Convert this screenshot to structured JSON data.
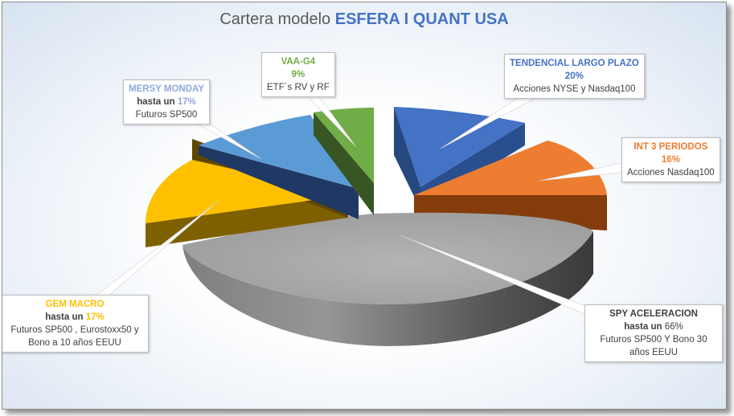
{
  "title": {
    "prefix": "Cartera modelo",
    "highlight": "ESFERA I QUANT USA"
  },
  "chart_data": {
    "type": "pie",
    "title": "Cartera modelo ESFERA I QUANT USA",
    "style": "3d-exploded",
    "slices": [
      {
        "name": "TENDENCIAL LARGO PLAZO",
        "prefix": "",
        "pct_label": "20%",
        "value": 20,
        "description": "Acciones NYSE y Nasdaq100",
        "color": "#4472c4",
        "name_color": "#4472c4",
        "pct_color": "#4472c4"
      },
      {
        "name": "INT 3 PERIODOS",
        "prefix": "",
        "pct_label": "16%",
        "value": 16,
        "description": "Acciones Nasdaq100",
        "color": "#ed7d31",
        "name_color": "#ed7d31",
        "pct_color": "#ed7d31"
      },
      {
        "name": "SPY ACELERACION",
        "prefix": "hasta un",
        "pct_label": "66%",
        "value": 66,
        "description": "Futuros SP500 Y Bono 30 años EEUU",
        "color": "#a5a5a5",
        "name_color": "#404040",
        "pct_color": "#404040"
      },
      {
        "name": "GEM MACRO",
        "prefix": "hasta un",
        "pct_label": "17%",
        "value": 17,
        "description": "Futuros SP500 , Eurostoxx50 y Bono a 10 años EEUU",
        "color": "#ffc000",
        "name_color": "#ffc000",
        "pct_color": "#ffc000"
      },
      {
        "name": "MERSY MONDAY",
        "prefix": "hasta un",
        "pct_label": "17%",
        "value": 17,
        "description": "Futuros SP500",
        "color": "#5b9bd5",
        "name_color": "#8eaadb",
        "pct_color": "#8eaadb"
      },
      {
        "name": "VAA-G4",
        "prefix": "",
        "pct_label": "9%",
        "value": 9,
        "description": "ETF´s RV y RF",
        "color": "#70ad47",
        "name_color": "#70ad47",
        "pct_color": "#70ad47"
      }
    ]
  }
}
